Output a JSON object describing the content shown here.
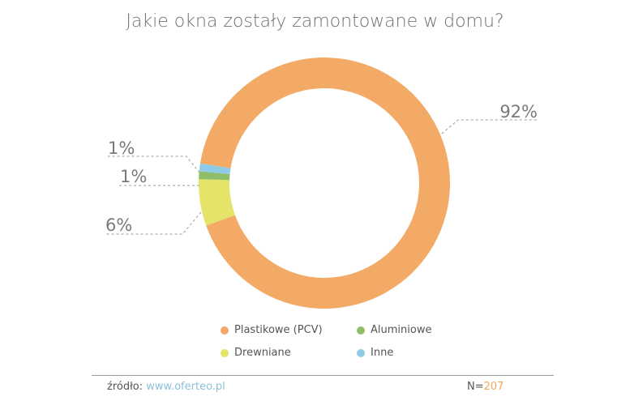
{
  "colors": {
    "plastikowe": "#f2aa66",
    "drewniane": "#e3e468",
    "aluminiowe": "#8fbe6b",
    "inne": "#8fcbe8",
    "label_text": "#7a7a7a",
    "leader_line": "#999999"
  },
  "chart_data": {
    "type": "pie",
    "title": "Jakie okna zostały zamontowane w domu?",
    "slices": [
      {
        "name": "Plastikowe (PCV)",
        "value": 92,
        "label": "92%",
        "color_key": "plastikowe"
      },
      {
        "name": "Drewniane",
        "value": 6,
        "label": "6%",
        "color_key": "drewniane"
      },
      {
        "name": "Aluminiowe",
        "value": 1,
        "label": "1%",
        "color_key": "aluminiowe"
      },
      {
        "name": "Inne",
        "value": 1,
        "label": "1%",
        "color_key": "inne"
      }
    ]
  },
  "legend": {
    "plastikowe": "Plastikowe (PCV)",
    "aluminiowe": "Aluminiowe",
    "drewniane": "Drewniane",
    "inne": "Inne"
  },
  "footer": {
    "source_label": "źródło:",
    "source_url": "www.oferteo.pl",
    "sample_label": "N=",
    "sample_value": "207"
  }
}
